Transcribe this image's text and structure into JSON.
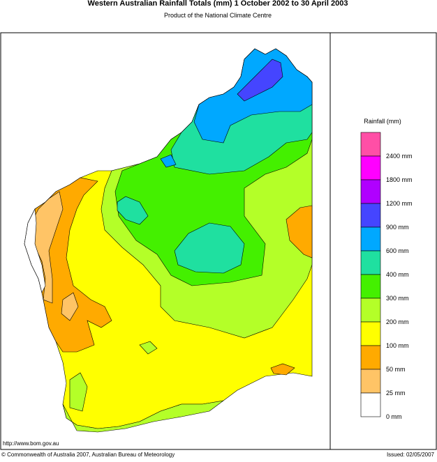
{
  "header": {
    "title": "Western Australian Rainfall Totals (mm) 1 October 2002 to 30 April 2003",
    "subtitle": "Product of the National Climate Centre"
  },
  "legend": {
    "title": "Rainfall (mm)",
    "items": [
      {
        "label": "2400 mm",
        "color": "#ff4fa6"
      },
      {
        "label": "1800 mm",
        "color": "#ff00ff"
      },
      {
        "label": "1200 mm",
        "color": "#b000ff"
      },
      {
        "label": "900 mm",
        "color": "#4545ff"
      },
      {
        "label": "600 mm",
        "color": "#00a8ff"
      },
      {
        "label": "400 mm",
        "color": "#1fe0a0"
      },
      {
        "label": "300 mm",
        "color": "#44f000"
      },
      {
        "label": "200 mm",
        "color": "#b4ff28"
      },
      {
        "label": "100 mm",
        "color": "#ffff00"
      },
      {
        "label": "50 mm",
        "color": "#ffaa00"
      },
      {
        "label": "25 mm",
        "color": "#ffc466"
      },
      {
        "label": "0 mm",
        "color": "#ffffff"
      }
    ]
  },
  "footer": {
    "url": "http://www.bom.gov.au",
    "copyright": "© Commonwealth of Australia 2007, Australian Bureau of Meteorology",
    "issued": "Issued: 02/05/2007"
  }
}
